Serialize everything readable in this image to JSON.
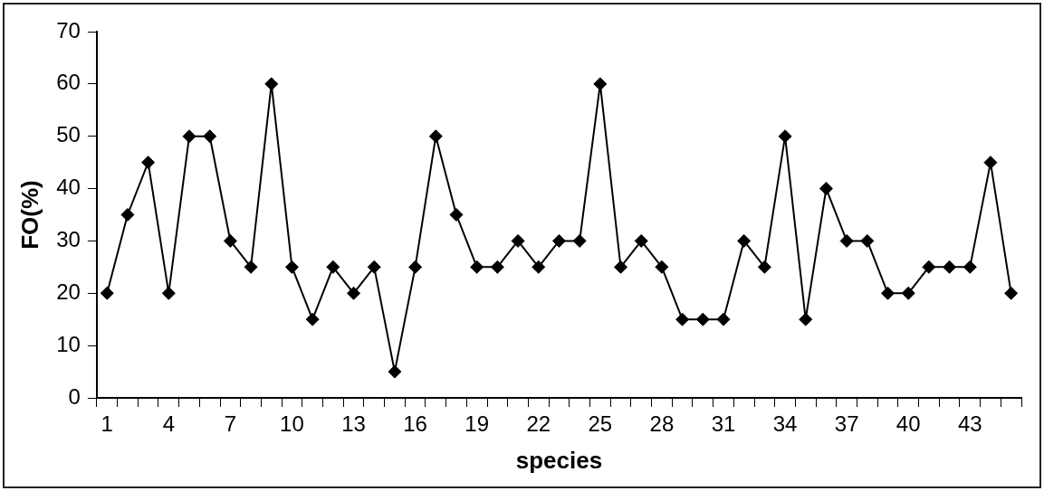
{
  "chart_data": {
    "type": "line",
    "xlabel": "species",
    "ylabel": "FO(%)",
    "categories": [
      "1",
      null,
      null,
      "4",
      null,
      null,
      "7",
      null,
      null,
      "10",
      null,
      null,
      "13",
      null,
      null,
      "16",
      null,
      null,
      "19",
      null,
      null,
      "22",
      null,
      null,
      "25",
      null,
      null,
      "28",
      null,
      null,
      "31",
      null,
      null,
      "34",
      null,
      null,
      "37",
      null,
      null,
      "40",
      null,
      null,
      "43",
      null,
      null
    ],
    "series": [
      {
        "color": "#000000",
        "values": [
          20,
          35,
          45,
          20,
          50,
          50,
          30,
          25,
          60,
          25,
          15,
          25,
          20,
          25,
          5,
          25,
          50,
          35,
          25,
          25,
          30,
          25,
          30,
          30,
          60,
          25,
          30,
          25,
          15,
          15,
          15,
          30,
          25,
          50,
          15,
          40,
          30,
          30,
          20,
          20,
          25,
          25,
          25,
          45,
          20
        ]
      }
    ],
    "ylim": [
      0,
      70
    ],
    "yticks": [
      0,
      10,
      20,
      30,
      40,
      50,
      60,
      70
    ],
    "grid": false,
    "legend": false,
    "marker": "diamond",
    "line_style": "solid"
  }
}
